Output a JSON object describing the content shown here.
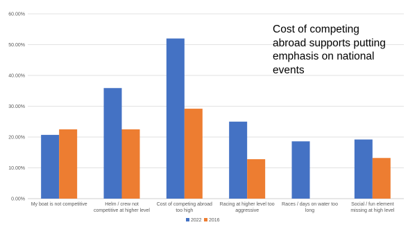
{
  "chart_data": {
    "type": "bar",
    "categories": [
      [
        "My boat is not competitive"
      ],
      [
        "Helm / crew not",
        "competitive at higher level"
      ],
      [
        "Cost of competing abroad",
        "too high"
      ],
      [
        "Racing at higher level too",
        "aggressive"
      ],
      [
        "Races / days on water too",
        "long"
      ],
      [
        "Social / fun element",
        "missing at high level"
      ]
    ],
    "series": [
      {
        "name": "2022",
        "color": "#4472C4",
        "values": [
          20.7,
          35.9,
          52.0,
          25.0,
          18.6,
          19.2
        ]
      },
      {
        "name": "2016",
        "color": "#ED7D31",
        "values": [
          22.5,
          22.5,
          29.2,
          12.8,
          null,
          13.2
        ]
      }
    ],
    "ylim": [
      0,
      60
    ],
    "ytick_labels": [
      "0.00%",
      "10.00%",
      "20.00%",
      "30.00%",
      "40.00%",
      "50.00%",
      "60.00%"
    ],
    "grid": true,
    "legend_position": "bottom",
    "annotation": [
      "Cost of competing",
      "abroad supports putting",
      "emphasis on national",
      "events"
    ]
  }
}
